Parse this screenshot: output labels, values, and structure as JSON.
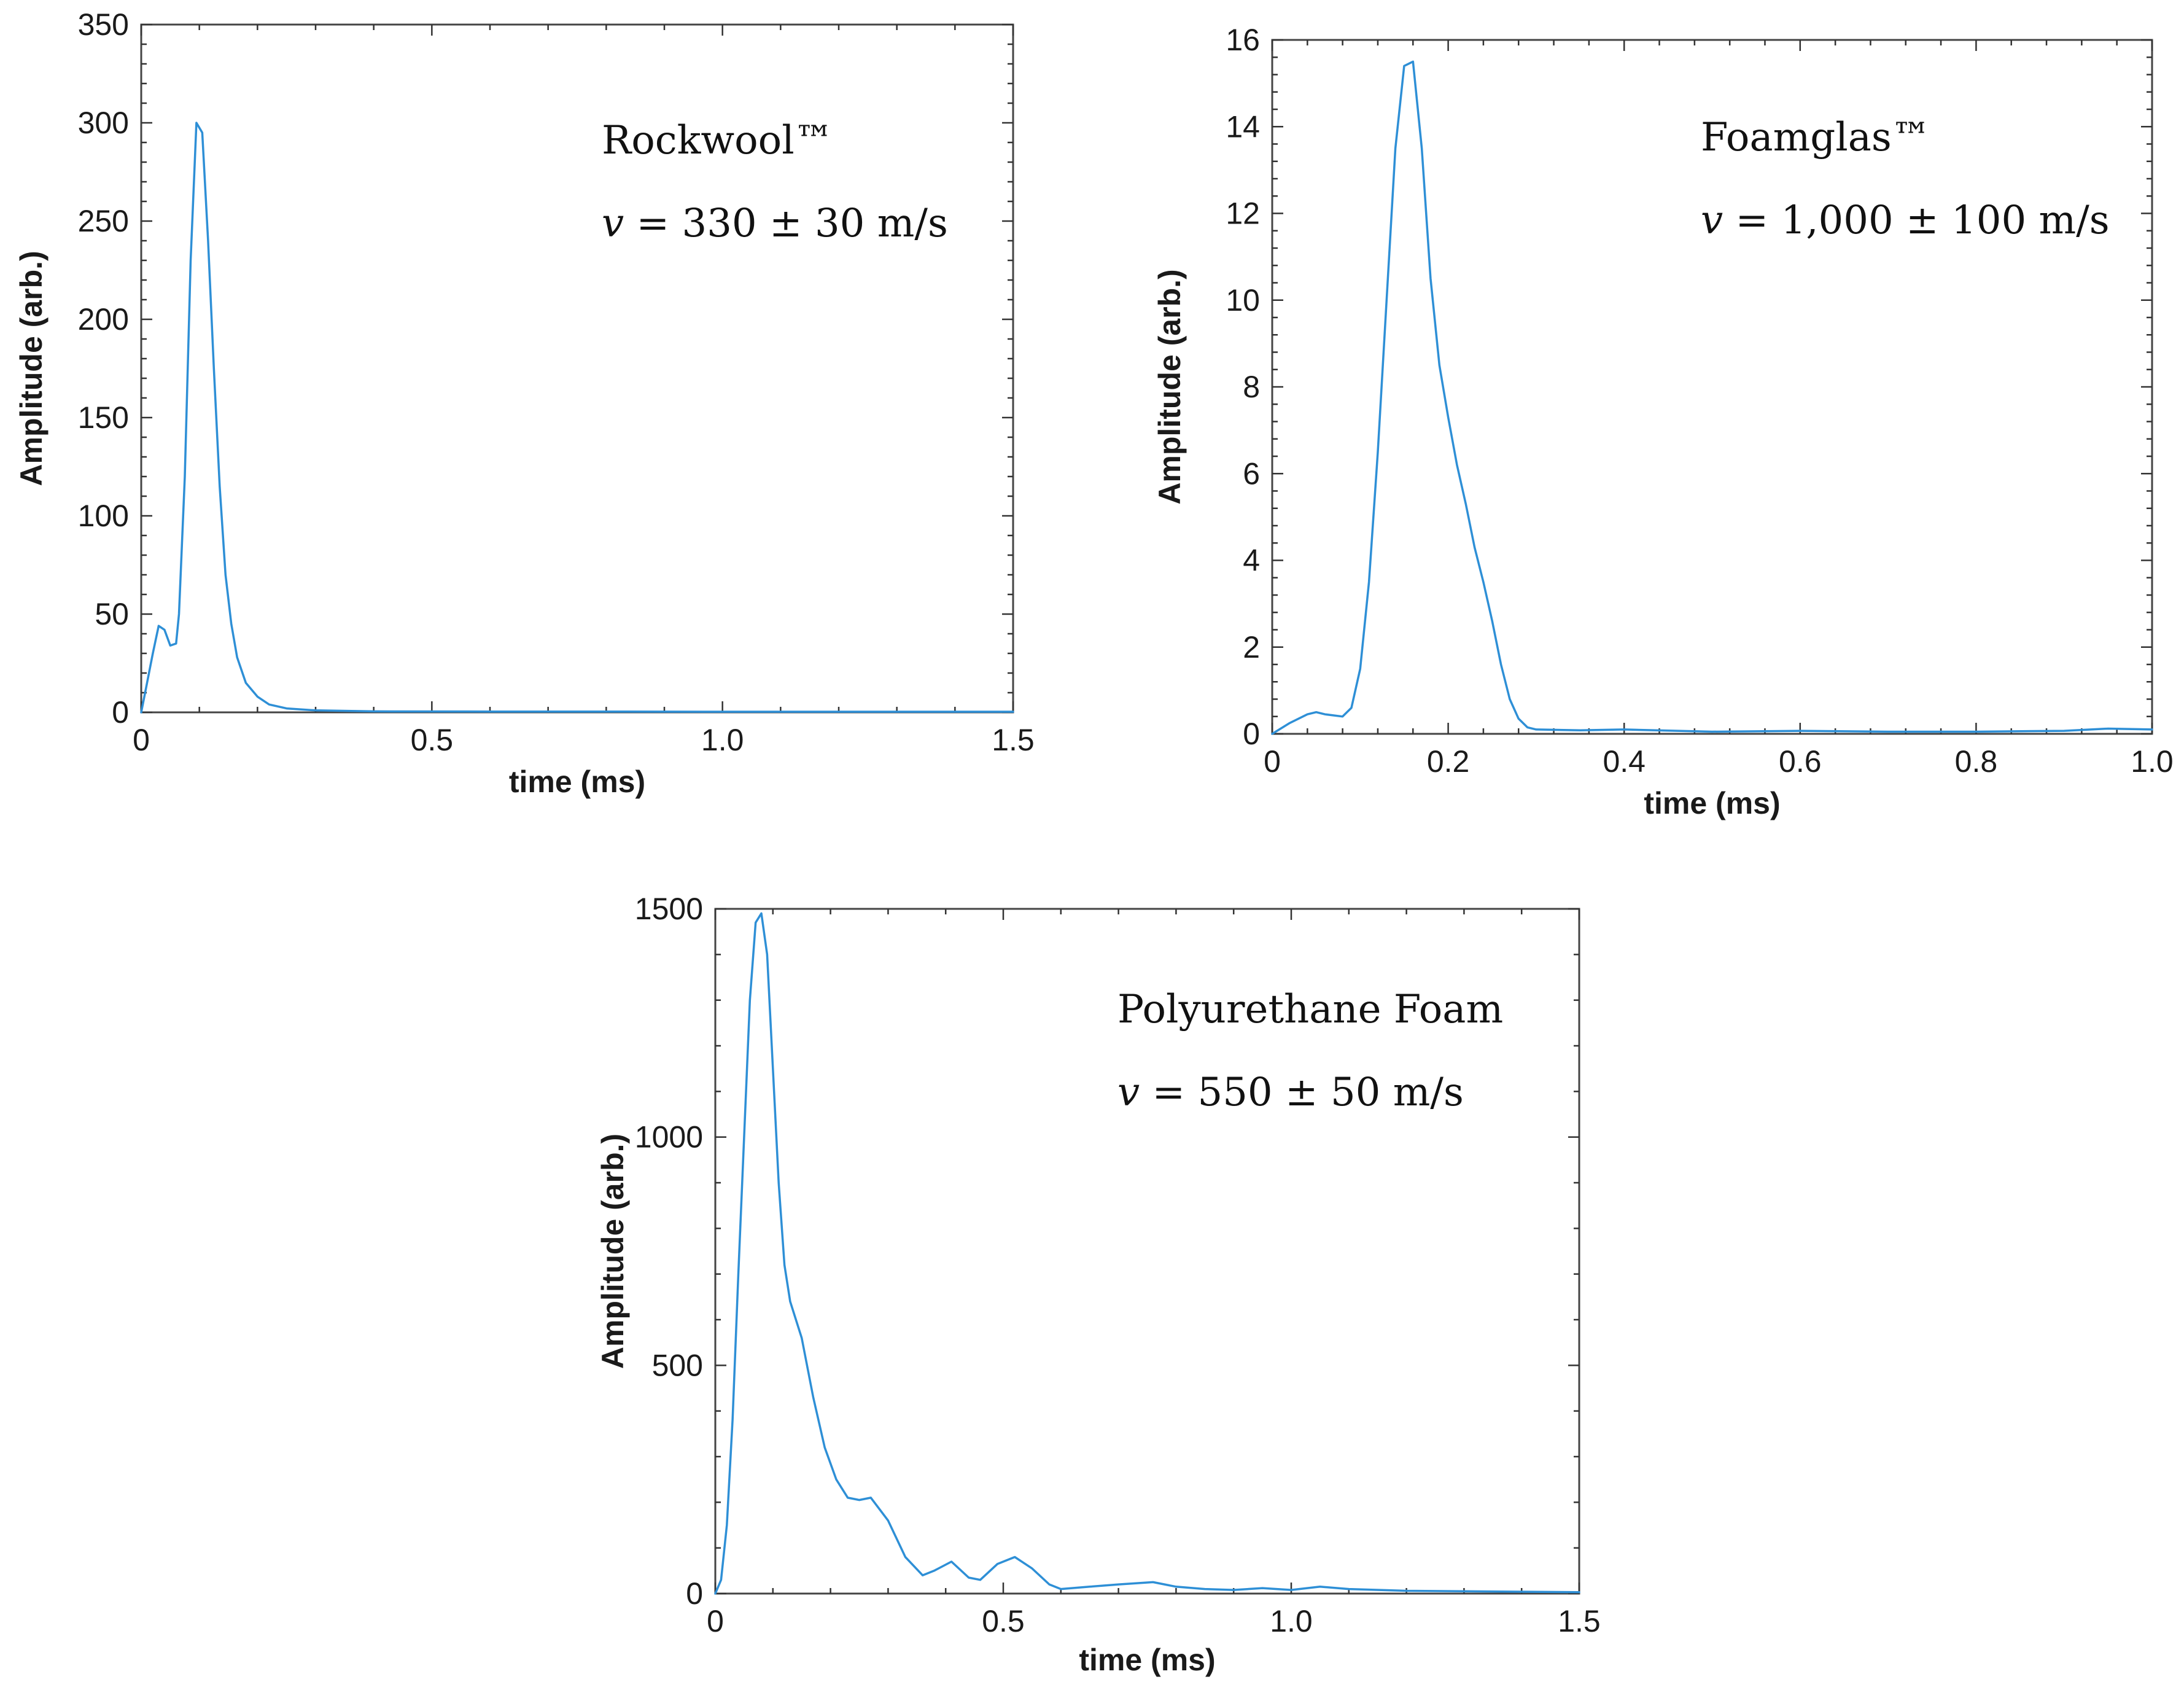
{
  "chart_data": [
    {
      "type": "line",
      "annotation": {
        "title": "Rockwool™",
        "velocity_symbol": "v",
        "velocity_text": " = 330 ± 30 m/s"
      },
      "xlabel": "time (ms)",
      "ylabel": "Amplitude (arb.)",
      "xlim": [
        0,
        1.5
      ],
      "ylim": [
        0,
        350
      ],
      "xticks": [
        0,
        0.5,
        1.0,
        1.5
      ],
      "xtick_labels": [
        "0",
        "0.5",
        "1.0",
        "1.5"
      ],
      "yticks": [
        0,
        50,
        100,
        150,
        200,
        250,
        300,
        350
      ],
      "ytick_labels": [
        "0",
        "50",
        "100",
        "150",
        "200",
        "250",
        "300",
        "350"
      ],
      "grid": false,
      "legend": "none",
      "color": "#2e8fd6",
      "series": [
        {
          "x": [
            0,
            0.01,
            0.02,
            0.03,
            0.04,
            0.05,
            0.06,
            0.065,
            0.075,
            0.085,
            0.095,
            0.105,
            0.115,
            0.125,
            0.135,
            0.145,
            0.155,
            0.165,
            0.18,
            0.2,
            0.22,
            0.25,
            0.3,
            0.4,
            0.6,
            0.8,
            1.0,
            1.2,
            1.4,
            1.5
          ],
          "y": [
            0,
            15,
            30,
            44,
            42,
            34,
            35,
            50,
            120,
            230,
            300,
            295,
            240,
            175,
            115,
            70,
            45,
            28,
            15,
            8,
            4,
            2,
            1,
            0.5,
            0.4,
            0.4,
            0.3,
            0.3,
            0.3,
            0.3
          ]
        }
      ]
    },
    {
      "type": "line",
      "annotation": {
        "title": "Foamglas™",
        "velocity_symbol": "v",
        "velocity_text": " = 1,000 ± 100 m/s"
      },
      "xlabel": "time (ms)",
      "ylabel": "Amplitude (arb.)",
      "xlim": [
        0,
        1.0
      ],
      "ylim": [
        0,
        16
      ],
      "xticks": [
        0,
        0.2,
        0.4,
        0.6,
        0.8,
        1.0
      ],
      "xtick_labels": [
        "0",
        "0.2",
        "0.4",
        "0.6",
        "0.8",
        "1.0"
      ],
      "yticks": [
        0,
        2,
        4,
        6,
        8,
        10,
        12,
        14,
        16
      ],
      "ytick_labels": [
        "0",
        "2",
        "4",
        "6",
        "8",
        "10",
        "12",
        "14",
        "16"
      ],
      "grid": false,
      "legend": "none",
      "color": "#2e8fd6",
      "series": [
        {
          "x": [
            0,
            0.02,
            0.04,
            0.05,
            0.06,
            0.08,
            0.09,
            0.1,
            0.11,
            0.12,
            0.13,
            0.14,
            0.15,
            0.16,
            0.17,
            0.18,
            0.19,
            0.2,
            0.21,
            0.22,
            0.23,
            0.24,
            0.25,
            0.26,
            0.27,
            0.28,
            0.29,
            0.3,
            0.35,
            0.4,
            0.5,
            0.6,
            0.7,
            0.8,
            0.9,
            0.95,
            1.0
          ],
          "y": [
            0,
            0.25,
            0.45,
            0.5,
            0.45,
            0.4,
            0.6,
            1.5,
            3.5,
            6.5,
            10.0,
            13.5,
            15.4,
            15.5,
            13.5,
            10.5,
            8.5,
            7.3,
            6.2,
            5.3,
            4.3,
            3.5,
            2.6,
            1.6,
            0.8,
            0.35,
            0.15,
            0.1,
            0.08,
            0.1,
            0.05,
            0.07,
            0.05,
            0.05,
            0.07,
            0.12,
            0.1
          ]
        }
      ]
    },
    {
      "type": "line",
      "annotation": {
        "title": "Polyurethane Foam",
        "velocity_symbol": "v",
        "velocity_text": " = 550 ± 50 m/s"
      },
      "xlabel": "time (ms)",
      "ylabel": "Amplitude (arb.)",
      "xlim": [
        0,
        1.5
      ],
      "ylim": [
        0,
        1500
      ],
      "xticks": [
        0,
        0.5,
        1.0,
        1.5
      ],
      "xtick_labels": [
        "0",
        "0.5",
        "1.0",
        "1.5"
      ],
      "yticks": [
        0,
        500,
        1000,
        1500
      ],
      "ytick_labels": [
        "0",
        "500",
        "1000",
        "1500"
      ],
      "grid": false,
      "legend": "none",
      "color": "#2e8fd6",
      "series": [
        {
          "x": [
            0,
            0.01,
            0.02,
            0.03,
            0.04,
            0.05,
            0.06,
            0.07,
            0.08,
            0.09,
            0.1,
            0.11,
            0.12,
            0.13,
            0.15,
            0.17,
            0.19,
            0.21,
            0.23,
            0.25,
            0.27,
            0.3,
            0.33,
            0.36,
            0.38,
            0.41,
            0.44,
            0.46,
            0.49,
            0.52,
            0.55,
            0.58,
            0.6,
            0.65,
            0.7,
            0.76,
            0.8,
            0.85,
            0.9,
            0.95,
            1.0,
            1.05,
            1.1,
            1.2,
            1.3,
            1.4,
            1.5
          ],
          "y": [
            0,
            30,
            150,
            380,
            700,
            1000,
            1300,
            1470,
            1490,
            1400,
            1150,
            900,
            720,
            640,
            560,
            430,
            320,
            250,
            210,
            205,
            210,
            160,
            80,
            40,
            50,
            70,
            35,
            30,
            65,
            80,
            55,
            20,
            10,
            15,
            20,
            25,
            15,
            10,
            8,
            12,
            8,
            15,
            10,
            6,
            5,
            4,
            3
          ]
        }
      ]
    }
  ]
}
